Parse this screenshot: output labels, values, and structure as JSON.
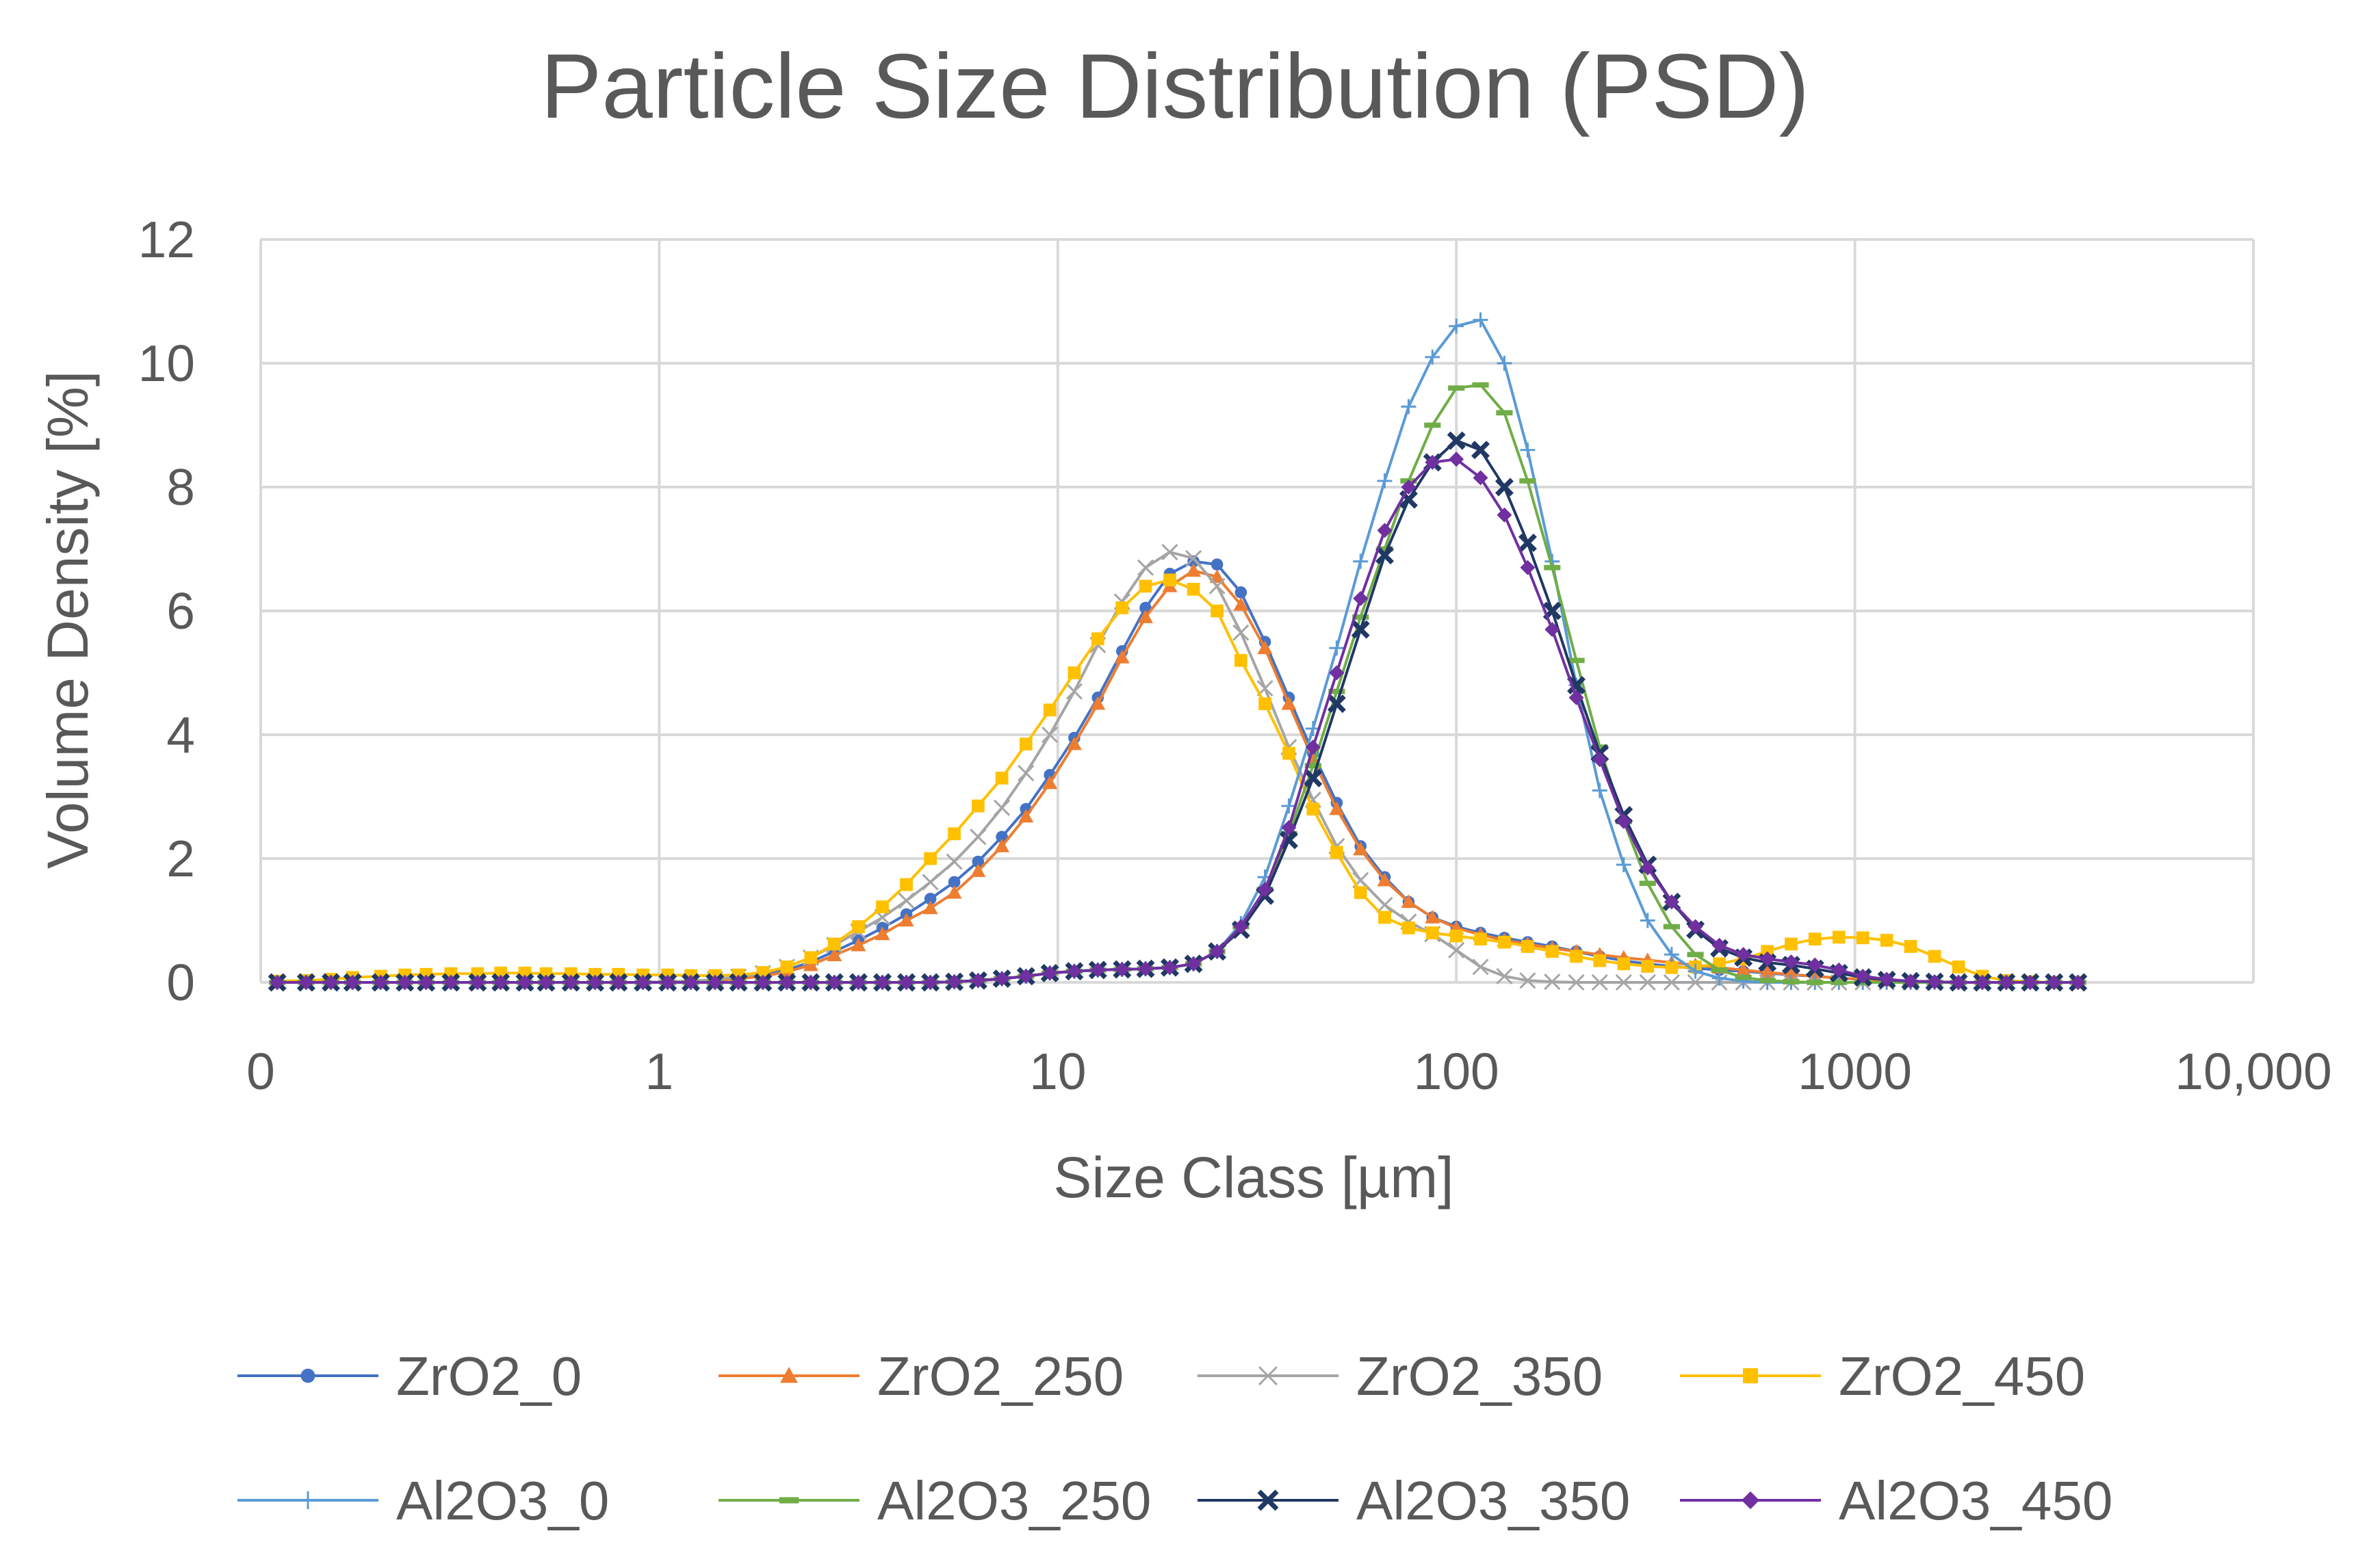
{
  "chart_data": {
    "type": "line",
    "title": "Particle Size Distribution (PSD)",
    "xlabel": "Size Class [µm]",
    "ylabel": "Volume Density [%]",
    "xscale": "log",
    "xlim": [
      0.1,
      10000
    ],
    "ylim": [
      0,
      12
    ],
    "grid": true,
    "legend_position": "bottom",
    "x_ticks": [
      {
        "value": 0.1,
        "label": "0"
      },
      {
        "value": 1,
        "label": "1"
      },
      {
        "value": 10,
        "label": "10"
      },
      {
        "value": 100,
        "label": "100"
      },
      {
        "value": 1000,
        "label": "1000"
      },
      {
        "value": 10000,
        "label": "10,000"
      }
    ],
    "y_ticks": [
      {
        "value": 0,
        "label": "0"
      },
      {
        "value": 2,
        "label": "2"
      },
      {
        "value": 4,
        "label": "4"
      },
      {
        "value": 6,
        "label": "6"
      },
      {
        "value": 8,
        "label": "8"
      },
      {
        "value": 10,
        "label": "10"
      },
      {
        "value": 12,
        "label": "12"
      }
    ],
    "x": [
      0.11,
      0.13,
      0.15,
      0.17,
      0.2,
      0.23,
      0.26,
      0.3,
      0.35,
      0.4,
      0.46,
      0.52,
      0.6,
      0.69,
      0.79,
      0.91,
      1.05,
      1.2,
      1.38,
      1.58,
      1.82,
      2.09,
      2.4,
      2.75,
      3.16,
      3.63,
      4.17,
      4.79,
      5.5,
      6.31,
      7.24,
      8.32,
      9.55,
      11.0,
      12.6,
      14.5,
      16.6,
      19.1,
      21.9,
      25.1,
      28.8,
      33.1,
      38.0,
      43.7,
      50.1,
      57.5,
      66.1,
      75.9,
      87.1,
      100,
      115,
      132,
      151,
      174,
      200,
      229,
      263,
      302,
      347,
      398,
      457,
      525,
      603,
      692,
      794,
      912,
      1047,
      1202,
      1380,
      1585,
      1820,
      2089,
      2399,
      2754,
      3162,
      3630
    ],
    "series": [
      {
        "name": "ZrO2_0",
        "color": "#4472C4",
        "marker": "circle",
        "values": [
          0,
          0,
          0,
          0,
          0,
          0,
          0,
          0,
          0,
          0,
          0,
          0,
          0,
          0,
          0,
          0,
          0.01,
          0.02,
          0.04,
          0.07,
          0.12,
          0.2,
          0.33,
          0.5,
          0.68,
          0.88,
          1.1,
          1.35,
          1.62,
          1.95,
          2.35,
          2.8,
          3.35,
          3.95,
          4.6,
          5.35,
          6.05,
          6.6,
          6.8,
          6.75,
          6.3,
          5.5,
          4.6,
          3.7,
          2.9,
          2.2,
          1.7,
          1.3,
          1.05,
          0.9,
          0.8,
          0.72,
          0.65,
          0.58,
          0.5,
          0.42,
          0.35,
          0.3,
          0.26,
          0.23,
          0.2,
          0.18,
          0.15,
          0.12,
          0.1,
          0.07,
          0.05,
          0.03,
          0.02,
          0.01,
          0,
          0,
          0,
          0,
          0,
          0
        ]
      },
      {
        "name": "ZrO2_250",
        "color": "#ED7D31",
        "marker": "triangle",
        "values": [
          0,
          0,
          0,
          0,
          0,
          0,
          0,
          0,
          0,
          0,
          0,
          0,
          0,
          0,
          0,
          0,
          0.01,
          0.02,
          0.03,
          0.06,
          0.1,
          0.17,
          0.28,
          0.44,
          0.6,
          0.78,
          1.0,
          1.2,
          1.45,
          1.8,
          2.2,
          2.68,
          3.22,
          3.85,
          4.5,
          5.25,
          5.9,
          6.4,
          6.65,
          6.55,
          6.1,
          5.4,
          4.5,
          3.6,
          2.8,
          2.15,
          1.65,
          1.3,
          1.05,
          0.88,
          0.77,
          0.68,
          0.62,
          0.55,
          0.5,
          0.45,
          0.4,
          0.36,
          0.32,
          0.28,
          0.24,
          0.2,
          0.16,
          0.13,
          0.1,
          0.07,
          0.05,
          0.03,
          0.02,
          0.01,
          0,
          0,
          0,
          0,
          0,
          0
        ]
      },
      {
        "name": "ZrO2_350",
        "color": "#A5A5A5",
        "marker": "x",
        "values": [
          0,
          0,
          0,
          0,
          0,
          0,
          0,
          0,
          0,
          0,
          0,
          0,
          0,
          0,
          0,
          0,
          0.01,
          0.02,
          0.05,
          0.09,
          0.15,
          0.25,
          0.4,
          0.6,
          0.82,
          1.05,
          1.32,
          1.62,
          1.95,
          2.35,
          2.82,
          3.38,
          4.0,
          4.7,
          5.45,
          6.15,
          6.7,
          6.95,
          6.85,
          6.4,
          5.65,
          4.75,
          3.8,
          2.95,
          2.2,
          1.65,
          1.25,
          0.98,
          0.78,
          0.52,
          0.25,
          0.1,
          0.03,
          0.01,
          0,
          0,
          0,
          0,
          0,
          0,
          0,
          0,
          0,
          0,
          0,
          0,
          0,
          0,
          0,
          0,
          0,
          0,
          0,
          0,
          0,
          0
        ]
      },
      {
        "name": "ZrO2_450",
        "color": "#FFC000",
        "marker": "square",
        "values": [
          0.02,
          0.03,
          0.05,
          0.08,
          0.1,
          0.12,
          0.13,
          0.14,
          0.14,
          0.15,
          0.15,
          0.14,
          0.14,
          0.13,
          0.13,
          0.12,
          0.12,
          0.11,
          0.11,
          0.12,
          0.16,
          0.25,
          0.4,
          0.62,
          0.9,
          1.22,
          1.58,
          2.0,
          2.4,
          2.85,
          3.3,
          3.85,
          4.4,
          5.0,
          5.55,
          6.05,
          6.4,
          6.5,
          6.35,
          6.0,
          5.2,
          4.5,
          3.7,
          2.8,
          2.1,
          1.45,
          1.05,
          0.88,
          0.8,
          0.75,
          0.7,
          0.65,
          0.58,
          0.5,
          0.42,
          0.35,
          0.3,
          0.26,
          0.24,
          0.25,
          0.3,
          0.38,
          0.5,
          0.62,
          0.7,
          0.73,
          0.72,
          0.68,
          0.58,
          0.42,
          0.25,
          0.1,
          0.03,
          0.01,
          0,
          0
        ]
      },
      {
        "name": "Al2O3_0",
        "color": "#5B9BD5",
        "marker": "plus",
        "values": [
          0,
          0,
          0,
          0,
          0,
          0,
          0,
          0,
          0,
          0,
          0,
          0,
          0,
          0,
          0,
          0,
          0,
          0,
          0,
          0,
          0,
          0,
          0,
          0,
          0,
          0,
          0,
          0,
          0.01,
          0.03,
          0.06,
          0.1,
          0.15,
          0.18,
          0.2,
          0.21,
          0.22,
          0.24,
          0.3,
          0.5,
          0.95,
          1.7,
          2.85,
          4.1,
          5.4,
          6.8,
          8.1,
          9.3,
          10.1,
          10.6,
          10.7,
          10.0,
          8.6,
          6.8,
          4.8,
          3.1,
          1.9,
          1.0,
          0.45,
          0.18,
          0.07,
          0.02,
          0,
          0,
          0,
          0,
          0,
          0,
          0,
          0,
          0,
          0,
          0,
          0,
          0,
          0
        ]
      },
      {
        "name": "Al2O3_250",
        "color": "#70AD47",
        "marker": "dash",
        "values": [
          0,
          0,
          0,
          0,
          0,
          0,
          0,
          0,
          0,
          0,
          0,
          0,
          0,
          0,
          0,
          0,
          0,
          0,
          0,
          0,
          0,
          0,
          0,
          0,
          0,
          0,
          0,
          0,
          0.01,
          0.03,
          0.06,
          0.1,
          0.15,
          0.18,
          0.2,
          0.21,
          0.22,
          0.24,
          0.3,
          0.5,
          0.9,
          1.5,
          2.4,
          3.5,
          4.7,
          5.9,
          7.0,
          8.1,
          9.0,
          9.6,
          9.65,
          9.2,
          8.1,
          6.7,
          5.2,
          3.8,
          2.6,
          1.6,
          0.9,
          0.45,
          0.2,
          0.08,
          0.03,
          0.01,
          0,
          0,
          0,
          0,
          0,
          0,
          0,
          0,
          0,
          0,
          0,
          0
        ]
      },
      {
        "name": "Al2O3_350",
        "color": "#203864",
        "marker": "x-bold",
        "values": [
          0,
          0,
          0,
          0,
          0,
          0,
          0,
          0,
          0,
          0,
          0,
          0,
          0,
          0,
          0,
          0,
          0,
          0,
          0,
          0,
          0,
          0,
          0,
          0,
          0,
          0,
          0,
          0,
          0.01,
          0.03,
          0.06,
          0.1,
          0.15,
          0.18,
          0.2,
          0.21,
          0.22,
          0.24,
          0.3,
          0.5,
          0.85,
          1.4,
          2.3,
          3.3,
          4.5,
          5.7,
          6.9,
          7.8,
          8.4,
          8.75,
          8.6,
          8.0,
          7.1,
          6.0,
          4.8,
          3.7,
          2.7,
          1.9,
          1.3,
          0.85,
          0.55,
          0.4,
          0.32,
          0.28,
          0.22,
          0.15,
          0.08,
          0.04,
          0.02,
          0.01,
          0,
          0,
          0,
          0,
          0,
          0
        ]
      },
      {
        "name": "Al2O3_450",
        "color": "#7030A0",
        "marker": "diamond",
        "values": [
          0,
          0,
          0,
          0,
          0,
          0,
          0,
          0,
          0,
          0,
          0,
          0,
          0,
          0,
          0,
          0,
          0,
          0,
          0,
          0,
          0,
          0,
          0,
          0,
          0,
          0,
          0,
          0,
          0.01,
          0.03,
          0.06,
          0.1,
          0.15,
          0.18,
          0.2,
          0.21,
          0.22,
          0.24,
          0.3,
          0.5,
          0.9,
          1.5,
          2.5,
          3.8,
          5.0,
          6.2,
          7.3,
          8.0,
          8.4,
          8.45,
          8.15,
          7.55,
          6.7,
          5.7,
          4.6,
          3.6,
          2.6,
          1.85,
          1.3,
          0.9,
          0.6,
          0.45,
          0.38,
          0.33,
          0.28,
          0.2,
          0.1,
          0.05,
          0.02,
          0.01,
          0,
          0,
          0,
          0,
          0,
          0
        ]
      }
    ]
  }
}
